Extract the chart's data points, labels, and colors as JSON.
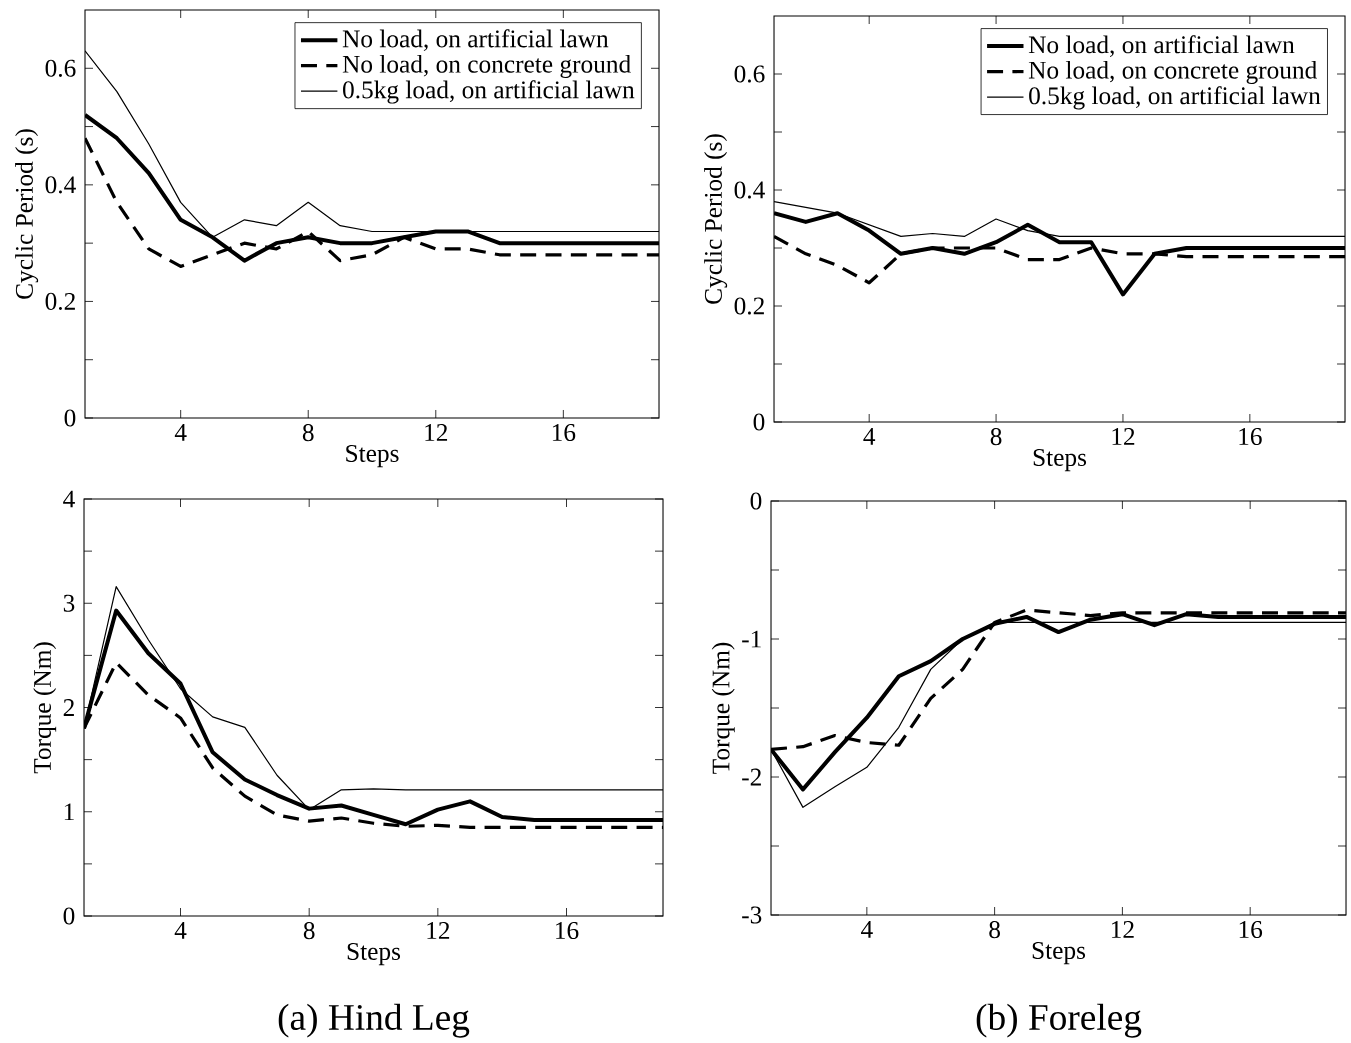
{
  "chart_data": [
    {
      "type": "line",
      "xlabel": "Steps",
      "ylabel": "Cyclic Period (s)",
      "x": [
        1,
        2,
        3,
        4,
        5,
        6,
        7,
        8,
        9,
        10,
        11,
        12,
        13,
        14,
        15,
        16,
        17,
        18,
        19
      ],
      "xlim": [
        1,
        19
      ],
      "xticks": [
        4,
        8,
        12,
        16
      ],
      "ylim": [
        0,
        0.7
      ],
      "yticks": [
        0,
        {
          "value": 0.1,
          "label": null
        },
        0.2,
        {
          "value": 0.3,
          "label": null
        },
        0.4,
        {
          "value": 0.5,
          "label": null
        },
        0.6
      ],
      "legend": "top right",
      "marker": "none",
      "series": [
        {
          "name": "No load, on artificial lawn",
          "color": "#000000",
          "line_style": "solid",
          "values": [
            0.52,
            0.48,
            0.42,
            0.34,
            0.31,
            0.27,
            0.3,
            0.31,
            0.3,
            0.3,
            0.31,
            0.32,
            0.32,
            0.3,
            0.3,
            0.3,
            0.3,
            0.3,
            0.3
          ]
        },
        {
          "name": "No load, on concrete ground",
          "color": "#000000",
          "line_style": "dashed",
          "values": [
            0.48,
            0.37,
            0.29,
            0.26,
            0.28,
            0.3,
            0.29,
            0.32,
            0.27,
            0.28,
            0.31,
            0.29,
            0.29,
            0.28,
            0.28,
            0.28,
            0.28,
            0.28,
            0.28
          ]
        },
        {
          "name": "0.5kg load, on artificial lawn",
          "color": "#000000",
          "line_style": "solid",
          "values": [
            0.63,
            0.56,
            0.47,
            0.37,
            0.31,
            0.34,
            0.33,
            0.37,
            0.33,
            0.32,
            0.32,
            0.32,
            0.32,
            0.32,
            0.32,
            0.32,
            0.32,
            0.32,
            0.32
          ]
        }
      ]
    },
    {
      "type": "line",
      "xlabel": "Steps",
      "ylabel": "Cyclic Period (s)",
      "x": [
        1,
        2,
        3,
        4,
        5,
        6,
        7,
        8,
        9,
        10,
        11,
        12,
        13,
        14,
        15,
        16,
        17,
        18,
        19
      ],
      "xlim": [
        1,
        19
      ],
      "xticks": [
        4,
        8,
        12,
        16
      ],
      "ylim": [
        0,
        0.7
      ],
      "yticks": [
        0,
        {
          "value": 0.1,
          "label": null
        },
        0.2,
        {
          "value": 0.3,
          "label": null
        },
        0.4,
        {
          "value": 0.5,
          "label": null
        },
        0.6
      ],
      "legend": "top right",
      "marker": "none",
      "series": [
        {
          "name": "No load, on artificial lawn",
          "color": "#000000",
          "line_style": "solid",
          "values": [
            0.36,
            0.345,
            0.36,
            0.33,
            0.29,
            0.3,
            0.29,
            0.31,
            0.34,
            0.31,
            0.31,
            0.22,
            0.29,
            0.3,
            0.3,
            0.3,
            0.3,
            0.3,
            0.3
          ]
        },
        {
          "name": "No load, on concrete ground",
          "color": "#000000",
          "line_style": "dashed",
          "values": [
            0.32,
            0.29,
            0.27,
            0.24,
            0.29,
            0.3,
            0.3,
            0.3,
            0.28,
            0.28,
            0.3,
            0.29,
            0.29,
            0.285,
            0.285,
            0.285,
            0.285,
            0.285,
            0.285
          ]
        },
        {
          "name": "0.5kg load, on artificial lawn",
          "color": "#000000",
          "line_style": "solid",
          "values": [
            0.38,
            0.37,
            0.36,
            0.34,
            0.32,
            0.325,
            0.32,
            0.35,
            0.33,
            0.32,
            0.32,
            0.32,
            0.32,
            0.32,
            0.32,
            0.32,
            0.32,
            0.32,
            0.32
          ]
        }
      ]
    },
    {
      "type": "line",
      "xlabel": "Steps",
      "ylabel": "Torque (Nm)",
      "annotations": [
        "(a) Hind Leg"
      ],
      "x": [
        1,
        2,
        3,
        4,
        5,
        6,
        7,
        8,
        9,
        10,
        11,
        12,
        13,
        14,
        15,
        16,
        17,
        18,
        19
      ],
      "xlim": [
        1,
        19
      ],
      "xticks": [
        4,
        8,
        12,
        16
      ],
      "ylim": [
        0,
        4
      ],
      "yticks": [
        0,
        {
          "value": 0.5,
          "label": null
        },
        1,
        {
          "value": 1.5,
          "label": null
        },
        2,
        {
          "value": 2.5,
          "label": null
        },
        3,
        {
          "value": 3.5,
          "label": null
        },
        4
      ],
      "marker": "none",
      "series": [
        {
          "color": "#000000",
          "line_style": "solid",
          "values": [
            1.8,
            2.93,
            2.52,
            2.23,
            1.57,
            1.31,
            1.16,
            1.03,
            1.06,
            0.97,
            0.88,
            1.02,
            1.1,
            0.95,
            0.92,
            0.92,
            0.92,
            0.92,
            0.92
          ]
        },
        {
          "color": "#000000",
          "line_style": "dashed",
          "values": [
            1.8,
            2.43,
            2.12,
            1.9,
            1.42,
            1.15,
            0.97,
            0.91,
            0.94,
            0.89,
            0.86,
            0.87,
            0.85,
            0.85,
            0.85,
            0.85,
            0.85,
            0.85,
            0.85
          ]
        },
        {
          "color": "#000000",
          "line_style": "solid",
          "values": [
            1.8,
            3.16,
            2.65,
            2.18,
            1.91,
            1.81,
            1.35,
            1.02,
            1.21,
            1.22,
            1.21,
            1.21,
            1.21,
            1.21,
            1.21,
            1.21,
            1.21,
            1.21,
            1.21
          ]
        }
      ]
    },
    {
      "type": "line",
      "xlabel": "Steps",
      "ylabel": "Torque (Nm)",
      "annotations": [
        "(b) Foreleg"
      ],
      "x": [
        1,
        2,
        3,
        4,
        5,
        6,
        7,
        8,
        9,
        10,
        11,
        12,
        13,
        14,
        15,
        16,
        17,
        18,
        19
      ],
      "xlim": [
        1,
        19
      ],
      "xticks": [
        4,
        8,
        12,
        16
      ],
      "ylim": [
        -3,
        0
      ],
      "yticks": [
        -3,
        {
          "value": -2.5,
          "label": null
        },
        -2,
        {
          "value": -1.5,
          "label": null
        },
        -1,
        {
          "value": -0.5,
          "label": null
        },
        0
      ],
      "marker": "none",
      "series": [
        {
          "color": "#000000",
          "line_style": "solid",
          "values": [
            -1.8,
            -2.09,
            -1.82,
            -1.57,
            -1.27,
            -1.16,
            -1.0,
            -0.89,
            -0.84,
            -0.95,
            -0.86,
            -0.82,
            -0.9,
            -0.82,
            -0.84,
            -0.84,
            -0.84,
            -0.84,
            -0.84
          ]
        },
        {
          "color": "#000000",
          "line_style": "dashed",
          "values": [
            -1.8,
            -1.78,
            -1.7,
            -1.75,
            -1.77,
            -1.43,
            -1.22,
            -0.88,
            -0.79,
            -0.81,
            -0.83,
            -0.81,
            -0.81,
            -0.81,
            -0.81,
            -0.81,
            -0.81,
            -0.81,
            -0.81
          ]
        },
        {
          "color": "#000000",
          "line_style": "solid",
          "values": [
            -1.8,
            -2.22,
            -2.07,
            -1.93,
            -1.64,
            -1.22,
            -1.0,
            -0.88,
            -0.88,
            -0.88,
            -0.88,
            -0.88,
            -0.88,
            -0.88,
            -0.88,
            -0.88,
            -0.88,
            -0.88,
            -0.88
          ]
        }
      ]
    }
  ]
}
